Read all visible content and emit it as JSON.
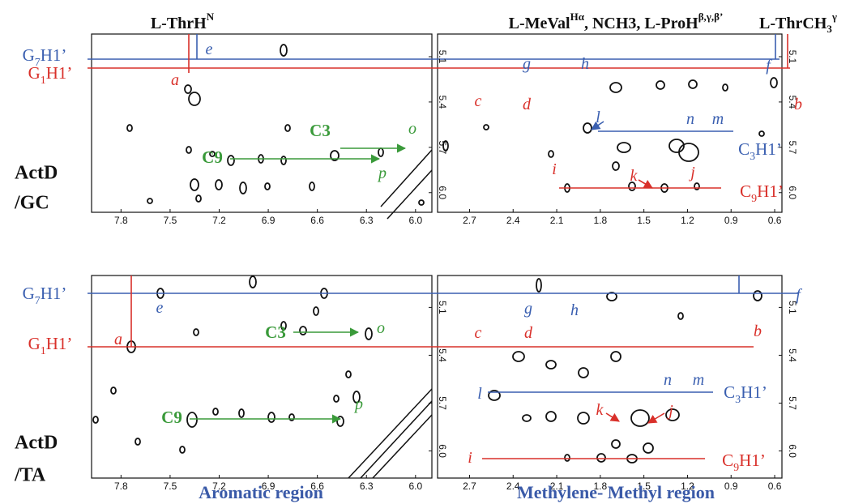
{
  "column_headers": [
    {
      "parts": [
        {
          "text": "L-ThrH"
        },
        {
          "text": "N",
          "sup": true
        }
      ]
    },
    {
      "parts": [
        {
          "text": "L-MeVal"
        },
        {
          "text": "Hα",
          "sup": true
        },
        {
          "text": ", NCH3, L-ProH"
        },
        {
          "text": "β,γ,β’",
          "sup": true
        }
      ]
    },
    {
      "parts": [
        {
          "text": "L-ThrCH"
        },
        {
          "text": "3",
          "sub": true
        },
        {
          "text": "γ",
          "sup": true
        }
      ]
    }
  ],
  "row_labels": [
    [
      "ActD",
      "/GC"
    ],
    [
      "ActD",
      "/TA"
    ]
  ],
  "region_labels": [
    "Aromatic region",
    "Methylene- Methyl region"
  ],
  "panels": [
    {
      "xlim": [
        7.98,
        5.9
      ],
      "xticks": [
        7.8,
        7.5,
        7.2,
        6.9,
        6.6,
        6.3,
        {
          "value": 6,
          "label": "6.0"
        }
      ],
      "ylim": [
        4.95,
        6.13
      ],
      "yticks": [
        5.1,
        5.4,
        5.7,
        {
          "value": 6,
          "label": "6.0"
        }
      ]
    },
    {
      "xlim": [
        2.92,
        0.55
      ],
      "xticks": [
        2.7,
        2.4,
        2.1,
        1.8,
        1.5,
        1.2,
        0.9,
        0.6
      ],
      "ylim": [
        4.95,
        6.13
      ],
      "yticks": [
        5.1,
        5.4,
        5.7,
        {
          "value": 6,
          "label": "6.0"
        }
      ]
    },
    {
      "xlim": [
        7.98,
        5.9
      ],
      "xticks": [
        7.8,
        7.5,
        7.2,
        6.9,
        6.6,
        6.3,
        {
          "value": 6,
          "label": "6.0"
        }
      ],
      "ylim": [
        4.9,
        6.17
      ],
      "yticks": [
        5.1,
        5.4,
        5.7,
        {
          "value": 6,
          "label": "6.0"
        }
      ]
    },
    {
      "xlim": [
        2.92,
        0.55
      ],
      "xticks": [
        2.7,
        2.4,
        2.1,
        1.8,
        1.5,
        1.2,
        0.9,
        0.6
      ],
      "ylim": [
        4.9,
        6.17
      ],
      "yticks": [
        5.1,
        5.4,
        5.7,
        {
          "value": 6,
          "label": "6.0"
        }
      ]
    }
  ],
  "annotations": [
    {
      "parts": [
        {
          "text": "G"
        },
        {
          "text": "7",
          "sub": true
        },
        {
          "text": "H1’"
        }
      ],
      "color": "#3a5fb0"
    },
    {
      "parts": [
        {
          "text": "G"
        },
        {
          "text": "1",
          "sub": true
        },
        {
          "text": "H1’"
        }
      ],
      "color": "#d9302a"
    },
    {
      "parts": [
        {
          "text": "a"
        }
      ],
      "color": "#d9302a"
    },
    {
      "parts": [
        {
          "text": "e"
        }
      ],
      "color": "#3a5fb0"
    },
    {
      "parts": [
        {
          "text": "C9"
        }
      ],
      "color": "#3a9a3a"
    },
    {
      "parts": [
        {
          "text": "C3"
        }
      ],
      "color": "#3a9a3a"
    },
    {
      "parts": [
        {
          "text": "o"
        }
      ],
      "color": "#3a9a3a"
    },
    {
      "parts": [
        {
          "text": "p"
        }
      ],
      "color": "#3a9a3a"
    },
    {
      "parts": [
        {
          "text": "c"
        }
      ],
      "color": "#d9302a"
    },
    {
      "parts": [
        {
          "text": "d"
        }
      ],
      "color": "#d9302a"
    },
    {
      "parts": [
        {
          "text": "g"
        }
      ],
      "color": "#3a5fb0"
    },
    {
      "parts": [
        {
          "text": "h"
        }
      ],
      "color": "#3a5fb0"
    },
    {
      "parts": [
        {
          "text": "f"
        }
      ],
      "color": "#3a5fb0"
    },
    {
      "parts": [
        {
          "text": "b"
        }
      ],
      "color": "#d9302a"
    },
    {
      "parts": [
        {
          "text": "l"
        }
      ],
      "color": "#3a5fb0"
    },
    {
      "parts": [
        {
          "text": "n"
        }
      ],
      "color": "#3a5fb0"
    },
    {
      "parts": [
        {
          "text": "m"
        }
      ],
      "color": "#3a5fb0"
    },
    {
      "parts": [
        {
          "text": "C"
        },
        {
          "text": "3",
          "sub": true
        },
        {
          "text": "H1’"
        }
      ],
      "color": "#3a5fb0"
    },
    {
      "parts": [
        {
          "text": "k"
        }
      ],
      "color": "#d9302a"
    },
    {
      "parts": [
        {
          "text": "i"
        }
      ],
      "color": "#d9302a"
    },
    {
      "parts": [
        {
          "text": "j"
        }
      ],
      "color": "#d9302a"
    },
    {
      "parts": [
        {
          "text": "C"
        },
        {
          "text": "9",
          "sub": true
        },
        {
          "text": "H1’"
        }
      ],
      "color": "#d9302a"
    },
    {
      "parts": [
        {
          "text": "G"
        },
        {
          "text": "7",
          "sub": true
        },
        {
          "text": "H1’"
        }
      ],
      "color": "#3a5fb0"
    },
    {
      "parts": [
        {
          "text": "G"
        },
        {
          "text": "1",
          "sub": true
        },
        {
          "text": "H1’"
        }
      ],
      "color": "#d9302a"
    },
    {
      "parts": [
        {
          "text": "a"
        }
      ],
      "color": "#d9302a"
    },
    {
      "parts": [
        {
          "text": "e"
        }
      ],
      "color": "#3a5fb0"
    },
    {
      "parts": [
        {
          "text": "C3"
        }
      ],
      "color": "#3a9a3a"
    },
    {
      "parts": [
        {
          "text": "o"
        }
      ],
      "color": "#3a9a3a"
    },
    {
      "parts": [
        {
          "text": "C9"
        }
      ],
      "color": "#3a9a3a"
    },
    {
      "parts": [
        {
          "text": "p"
        }
      ],
      "color": "#3a9a3a"
    },
    {
      "parts": [
        {
          "text": "c"
        }
      ],
      "color": "#d9302a"
    },
    {
      "parts": [
        {
          "text": "d"
        }
      ],
      "color": "#d9302a"
    },
    {
      "parts": [
        {
          "text": "g"
        }
      ],
      "color": "#3a5fb0"
    },
    {
      "parts": [
        {
          "text": "h"
        }
      ],
      "color": "#3a5fb0"
    },
    {
      "parts": [
        {
          "text": "f"
        }
      ],
      "color": "#3a5fb0"
    },
    {
      "parts": [
        {
          "text": "b"
        }
      ],
      "color": "#d9302a"
    },
    {
      "parts": [
        {
          "text": "l"
        }
      ],
      "color": "#3a5fb0"
    },
    {
      "parts": [
        {
          "text": "n"
        }
      ],
      "color": "#3a5fb0"
    },
    {
      "parts": [
        {
          "text": "m"
        }
      ],
      "color": "#3a5fb0"
    },
    {
      "parts": [
        {
          "text": "C"
        },
        {
          "text": "3",
          "sub": true
        },
        {
          "text": "H1’"
        }
      ],
      "color": "#3a5fb0"
    },
    {
      "parts": [
        {
          "text": "k"
        }
      ],
      "color": "#d9302a"
    },
    {
      "parts": [
        {
          "text": "j"
        }
      ],
      "color": "#d9302a"
    },
    {
      "parts": [
        {
          "text": "i"
        }
      ],
      "color": "#d9302a"
    },
    {
      "parts": [
        {
          "text": "C"
        },
        {
          "text": "9",
          "sub": true
        },
        {
          "text": "H1’"
        }
      ],
      "color": "#d9302a"
    }
  ]
}
